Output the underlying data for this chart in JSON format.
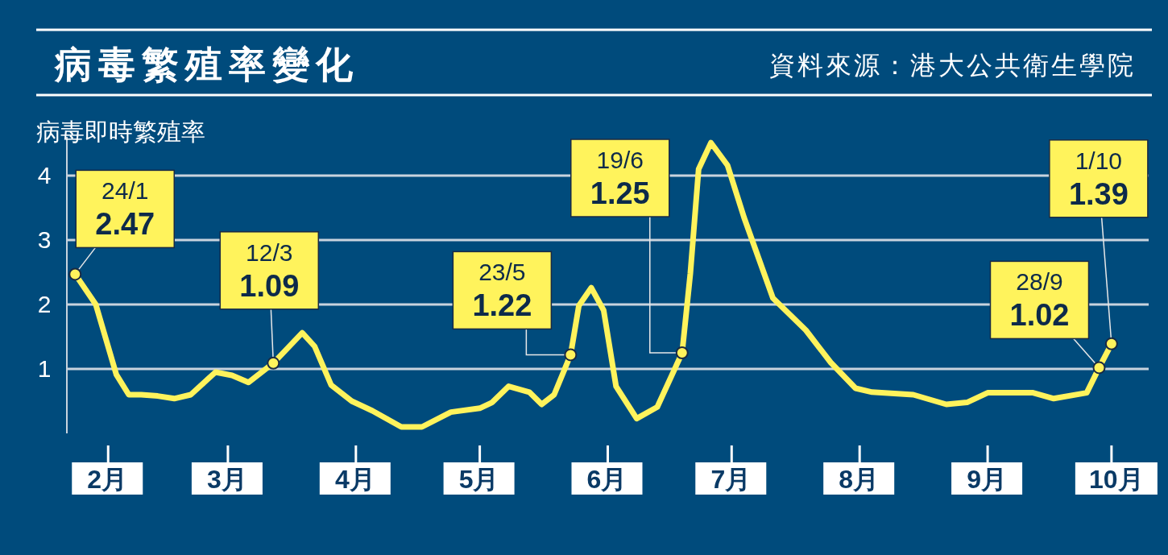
{
  "chart_data": {
    "type": "line",
    "title": "病毒繁殖率變化",
    "ylabel": "病毒即時繁殖率",
    "x": [
      "--01-24",
      "--01-29",
      "--02-03",
      "--02-06",
      "--02-09",
      "--02-13",
      "--02-17",
      "--02-21",
      "--02-27",
      "--03-02",
      "--03-06",
      "--03-12",
      "--03-19",
      "--03-22",
      "--03-26",
      "--03-31",
      "--04-05",
      "--04-12",
      "--04-17",
      "--04-24",
      "--05-01",
      "--05-04",
      "--05-08",
      "--05-13",
      "--05-16",
      "--05-19",
      "--05-23",
      "--05-25",
      "--05-28",
      "--05-31",
      "--06-03",
      "--06-08",
      "--06-13",
      "--06-19",
      "--06-21",
      "--06-23",
      "--06-26",
      "--06-30",
      "--07-04",
      "--07-11",
      "--07-19",
      "--07-25",
      "--07-31",
      "--08-04",
      "--08-14",
      "--08-22",
      "--08-27",
      "--09-01",
      "--09-12",
      "--09-17",
      "--09-25",
      "--09-28",
      "--10-01"
    ],
    "series": [
      {
        "color": "#fff35c",
        "values": [
          2.47,
          2.0,
          0.91,
          0.6,
          0.6,
          0.58,
          0.54,
          0.6,
          0.95,
          0.9,
          0.79,
          1.09,
          1.56,
          1.35,
          0.75,
          0.5,
          0.35,
          0.1,
          0.1,
          0.33,
          0.39,
          0.48,
          0.73,
          0.64,
          0.45,
          0.6,
          1.22,
          1.98,
          2.26,
          1.91,
          0.73,
          0.23,
          0.41,
          1.25,
          2.48,
          4.1,
          4.51,
          4.16,
          3.35,
          2.1,
          1.6,
          1.1,
          0.7,
          0.64,
          0.6,
          0.45,
          0.48,
          0.63,
          0.63,
          0.54,
          0.63,
          1.02,
          1.39
        ]
      }
    ],
    "xlim": [
      "--01-22",
      "--10-10"
    ],
    "xticks": [
      {
        "value": "--02-01",
        "label": "2月"
      },
      {
        "value": "--03-01",
        "label": "3月"
      },
      {
        "value": "--04-01",
        "label": "4月"
      },
      {
        "value": "--05-01",
        "label": "5月"
      },
      {
        "value": "--06-01",
        "label": "6月"
      },
      {
        "value": "--07-01",
        "label": "7月"
      },
      {
        "value": "--08-01",
        "label": "8月"
      },
      {
        "value": "--09-01",
        "label": "9月"
      },
      {
        "value": "--10-01",
        "label": "10月"
      }
    ],
    "ylim": [
      0,
      4.6
    ],
    "yticks": [
      1,
      2,
      3,
      4
    ],
    "grid": "y",
    "line_style": "solid",
    "annotations": [
      {
        "text": "24/1\n2.47",
        "x": "--01-24",
        "y": 2.47
      },
      {
        "text": "12/3\n1.09",
        "x": "--03-12",
        "y": 1.09
      },
      {
        "text": "23/5\n1.22",
        "x": "--05-23",
        "y": 1.22
      },
      {
        "text": "19/6\n1.25",
        "x": "--06-19",
        "y": 1.25
      },
      {
        "text": "28/9\n1.02",
        "x": "--09-28",
        "y": 1.02
      },
      {
        "text": "1/10\n1.39",
        "x": "--10-01",
        "y": 1.39
      },
      "資料來源：港大公共衛生學院"
    ]
  }
}
